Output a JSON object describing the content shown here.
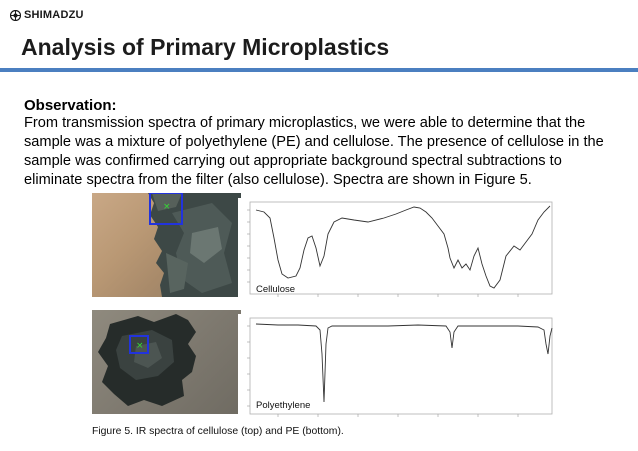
{
  "brand": {
    "logo_text": "SHIMADZU"
  },
  "slide": {
    "title": "Analysis of Primary Microplastics",
    "heading": "Observation:",
    "body": "From transmission spectra of primary microplastics, we were able to determine that the sample was a mixture of polyethylene (PE) and cellulose. The presence of cellulose in the sample was confirmed carrying out appropriate background spectral subtractions to eliminate spectra from the filter (also cellulose). Spectra are shown in Figure 5."
  },
  "figure": {
    "caption": "Figure 5. IR spectra of cellulose (top) and PE (bottom).",
    "spectra": [
      {
        "label": "Cellulose"
      },
      {
        "label": "Polyethylene"
      }
    ],
    "colors": {
      "frame": "#b0b0b0",
      "trace": "#333333",
      "marker_box": "#2233dd",
      "marker_x": "#33dd33",
      "rule": "#4b7fc0"
    }
  }
}
